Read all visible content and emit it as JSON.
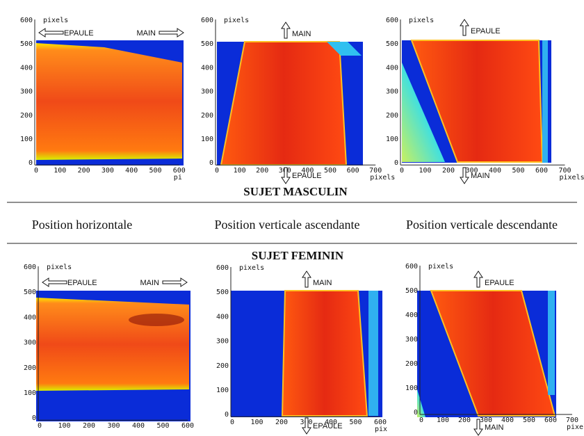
{
  "male_title": "SUJET  MASCULIN",
  "female_title": "SUJET  FEMININ",
  "positions": [
    "Position  horizontale",
    "Position  verticale  ascendante",
    "Position  verticale  descendante"
  ],
  "panels": [
    {
      "y_unit": "pixels",
      "x_unit": "pi",
      "yticks": [
        "600",
        "500",
        "400",
        "300",
        "200",
        "100",
        "0"
      ],
      "xticks": [
        "0",
        "100",
        "200",
        "300",
        "400",
        "500",
        "600"
      ],
      "arrows": [
        "EPAULE",
        "MAIN"
      ]
    },
    {
      "y_unit": "pixels",
      "x_unit": "pixels",
      "yticks": [
        "600",
        "500",
        "400",
        "300",
        "200",
        "100",
        "0"
      ],
      "xticks": [
        "0",
        "100",
        "200",
        "300",
        "400",
        "500",
        "600",
        "700"
      ],
      "arrows": [
        "MAIN",
        "EPAULE"
      ]
    },
    {
      "y_unit": "pixels",
      "x_unit": "pixels",
      "yticks": [
        "600",
        "500",
        "400",
        "300",
        "200",
        "100",
        "0"
      ],
      "xticks": [
        "0",
        "100",
        "200",
        "300",
        "400",
        "500",
        "600",
        "700"
      ],
      "arrows": [
        "EPAULE",
        "MAIN"
      ]
    },
    {
      "y_unit": "pixels",
      "yticks": [
        "600",
        "500",
        "400",
        "300",
        "200",
        "100",
        "0"
      ],
      "xticks": [
        "0",
        "100",
        "200",
        "300",
        "400",
        "500",
        "600"
      ],
      "arrows": [
        "EPAULE",
        "MAIN"
      ]
    },
    {
      "y_unit": "pixels",
      "x_unit": "pix",
      "yticks": [
        "600",
        "500",
        "400",
        "300",
        "200",
        "100",
        "0"
      ],
      "xticks": [
        "0",
        "100",
        "200",
        "300",
        "400",
        "500",
        "600"
      ],
      "arrows": [
        "MAIN",
        "EPAULE"
      ]
    },
    {
      "y_unit": "pixels",
      "x_unit": "pixels",
      "yticks": [
        "600",
        "500",
        "400",
        "300",
        "200",
        "100",
        "0"
      ],
      "xticks": [
        "0",
        "100",
        "200",
        "300",
        "400",
        "500",
        "600",
        "700"
      ],
      "arrows": [
        "EPAULE",
        "MAIN"
      ]
    }
  ]
}
